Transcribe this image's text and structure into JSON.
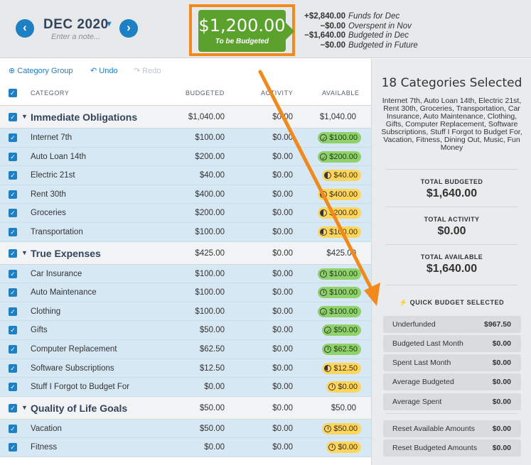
{
  "header": {
    "month": "DEC 2020",
    "note_placeholder": "Enter a note...",
    "to_be_budgeted_amount": "$1,200.00",
    "to_be_budgeted_label": "To be Budgeted",
    "summary": [
      {
        "amount": "+$2,840.00",
        "label": "Funds for Dec"
      },
      {
        "amount": "−$0.00",
        "label": "Overspent in Nov"
      },
      {
        "amount": "−$1,640.00",
        "label": "Budgeted in Dec"
      },
      {
        "amount": "−$0.00",
        "label": "Budgeted in Future"
      }
    ]
  },
  "toolbar": {
    "category_group": "Category Group",
    "undo": "Undo",
    "redo": "Redo"
  },
  "table": {
    "headers": {
      "category": "CATEGORY",
      "budgeted": "BUDGETED",
      "activity": "ACTIVITY",
      "available": "AVAILABLE"
    },
    "groups": [
      {
        "name": "Immediate Obligations",
        "budgeted": "$1,040.00",
        "activity": "$0.00",
        "available": "$1,040.00",
        "rows": [
          {
            "name": "Internet 7th",
            "budgeted": "$100.00",
            "activity": "$0.00",
            "available": "$100.00",
            "status": "green",
            "icon": "check"
          },
          {
            "name": "Auto Loan 14th",
            "budgeted": "$200.00",
            "activity": "$0.00",
            "available": "$200.00",
            "status": "green",
            "icon": "check"
          },
          {
            "name": "Electric 21st",
            "budgeted": "$40.00",
            "activity": "$0.00",
            "available": "$40.00",
            "status": "yellow",
            "icon": "half"
          },
          {
            "name": "Rent 30th",
            "budgeted": "$400.00",
            "activity": "$0.00",
            "available": "$400.00",
            "status": "yellow",
            "icon": "half"
          },
          {
            "name": "Groceries",
            "budgeted": "$200.00",
            "activity": "$0.00",
            "available": "$200.00",
            "status": "yellow",
            "icon": "half"
          },
          {
            "name": "Transportation",
            "budgeted": "$100.00",
            "activity": "$0.00",
            "available": "$100.00",
            "status": "yellow",
            "icon": "half"
          }
        ]
      },
      {
        "name": "True Expenses",
        "budgeted": "$425.00",
        "activity": "$0.00",
        "available": "$425.00",
        "rows": [
          {
            "name": "Car Insurance",
            "budgeted": "$100.00",
            "activity": "$0.00",
            "available": "$100.00",
            "status": "green",
            "icon": "clock"
          },
          {
            "name": "Auto Maintenance",
            "budgeted": "$100.00",
            "activity": "$0.00",
            "available": "$100.00",
            "status": "green",
            "icon": "clock"
          },
          {
            "name": "Clothing",
            "budgeted": "$100.00",
            "activity": "$0.00",
            "available": "$100.00",
            "status": "green",
            "icon": "check"
          },
          {
            "name": "Gifts",
            "budgeted": "$50.00",
            "activity": "$0.00",
            "available": "$50.00",
            "status": "green",
            "icon": "check"
          },
          {
            "name": "Computer Replacement",
            "budgeted": "$62.50",
            "activity": "$0.00",
            "available": "$62.50",
            "status": "green",
            "icon": "clock"
          },
          {
            "name": "Software Subscriptions",
            "budgeted": "$12.50",
            "activity": "$0.00",
            "available": "$12.50",
            "status": "yellow",
            "icon": "half"
          },
          {
            "name": "Stuff I Forgot to Budget For",
            "budgeted": "$0.00",
            "activity": "$0.00",
            "available": "$0.00",
            "status": "yellow",
            "icon": "clock"
          }
        ]
      },
      {
        "name": "Quality of Life Goals",
        "budgeted": "$50.00",
        "activity": "$0.00",
        "available": "$50.00",
        "rows": [
          {
            "name": "Vacation",
            "budgeted": "$50.00",
            "activity": "$0.00",
            "available": "$50.00",
            "status": "yellow",
            "icon": "clock"
          },
          {
            "name": "Fitness",
            "budgeted": "$0.00",
            "activity": "$0.00",
            "available": "$0.00",
            "status": "yellow",
            "icon": "clock"
          }
        ]
      }
    ]
  },
  "panel": {
    "title": "18 Categories Selected",
    "categories_list": "Internet 7th, Auto Loan 14th, Electric 21st, Rent 30th, Groceries, Transportation, Car Insurance, Auto Maintenance, Clothing, Gifts, Computer Replacement, Software Subscriptions, Stuff I Forgot to Budget For, Vacation, Fitness, Dining Out, Music, Fun Money",
    "total_budgeted_label": "TOTAL BUDGETED",
    "total_budgeted": "$1,640.00",
    "total_activity_label": "TOTAL ACTIVITY",
    "total_activity": "$0.00",
    "total_available_label": "TOTAL AVAILABLE",
    "total_available": "$1,640.00",
    "quick_budget_title": "QUICK BUDGET SELECTED",
    "quick_budget": [
      {
        "label": "Underfunded",
        "value": "$967.50"
      },
      {
        "label": "Budgeted Last Month",
        "value": "$0.00"
      },
      {
        "label": "Spent Last Month",
        "value": "$0.00"
      },
      {
        "label": "Average Budgeted",
        "value": "$0.00"
      },
      {
        "label": "Average Spent",
        "value": "$0.00"
      }
    ],
    "reset_buttons": [
      {
        "label": "Reset Available Amounts",
        "value": "$0.00"
      },
      {
        "label": "Reset Budgeted Amounts",
        "value": "$0.00"
      }
    ]
  },
  "colors": {
    "accent": "#1d7fc4",
    "positive": "#5aa22c",
    "pill_green": "#8fd16a",
    "pill_yellow": "#ffd55e",
    "highlight": "#f08a1d"
  }
}
